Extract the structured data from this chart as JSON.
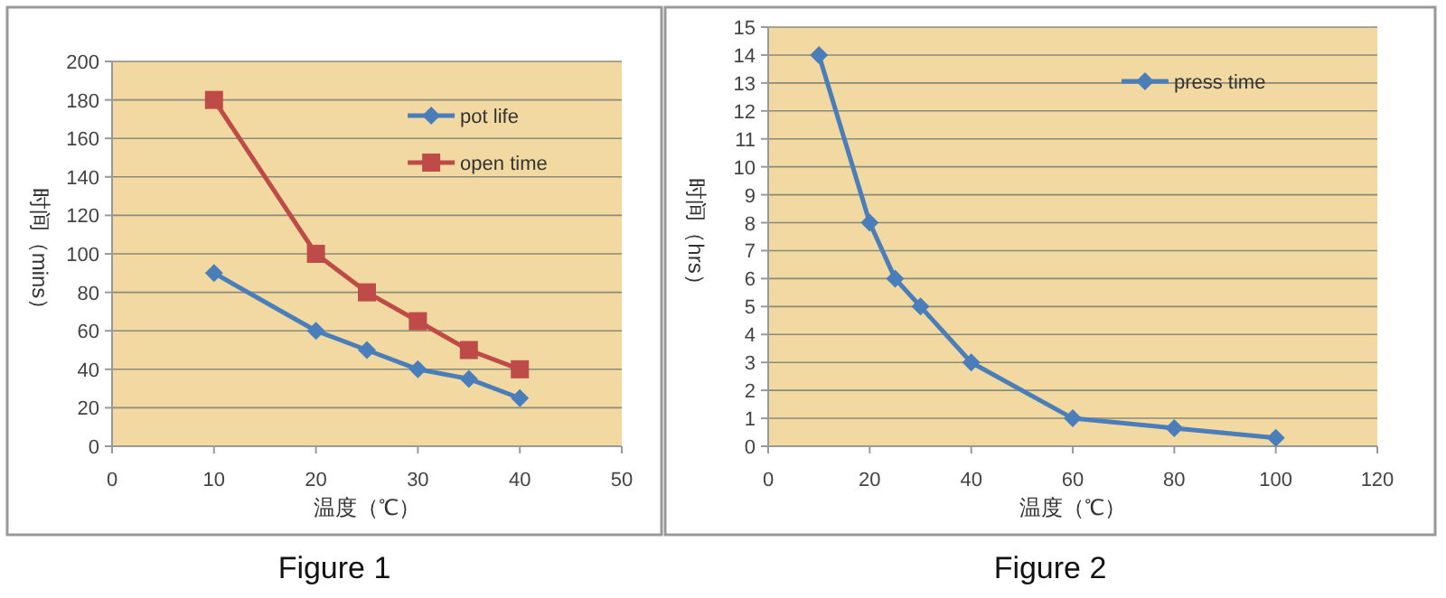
{
  "chart_data": [
    {
      "type": "line",
      "xlabel": "温度（℃）",
      "ylabel": "时间（mins）",
      "annotations": [
        "Figure 1"
      ],
      "xlim": [
        0,
        50
      ],
      "xticks": [
        0,
        10,
        20,
        30,
        40,
        50
      ],
      "ylim": [
        0,
        200
      ],
      "yticks": [
        0,
        20,
        40,
        60,
        80,
        100,
        120,
        140,
        160,
        180,
        200
      ],
      "grid": "y",
      "legend": "top right",
      "series": [
        {
          "name": "pot life",
          "color": "#4a7ebb",
          "marker": "diamond",
          "x": [
            10,
            20,
            25,
            30,
            35,
            40
          ],
          "values": [
            90,
            60,
            50,
            40,
            35,
            25
          ]
        },
        {
          "name": "open time",
          "color": "#be4b48",
          "marker": "square",
          "x": [
            10,
            20,
            25,
            30,
            35,
            40
          ],
          "values": [
            180,
            100,
            80,
            65,
            50,
            40
          ]
        }
      ]
    },
    {
      "type": "line",
      "xlabel": "温度（℃）",
      "ylabel": "时间（hrs）",
      "annotations": [
        "Figure 2"
      ],
      "xlim": [
        0,
        120
      ],
      "xticks": [
        0,
        20,
        40,
        60,
        80,
        100,
        120
      ],
      "ylim": [
        0,
        15
      ],
      "yticks": [
        0,
        1,
        2,
        3,
        4,
        5,
        6,
        7,
        8,
        9,
        10,
        11,
        12,
        13,
        14,
        15
      ],
      "grid": "y",
      "legend": "top right",
      "series": [
        {
          "name": "press time",
          "color": "#4a7ebb",
          "marker": "diamond",
          "x": [
            10,
            20,
            25,
            30,
            40,
            60,
            80,
            100
          ],
          "values": [
            14,
            8,
            6,
            5,
            3,
            1,
            0.65,
            0.3
          ]
        }
      ]
    }
  ]
}
